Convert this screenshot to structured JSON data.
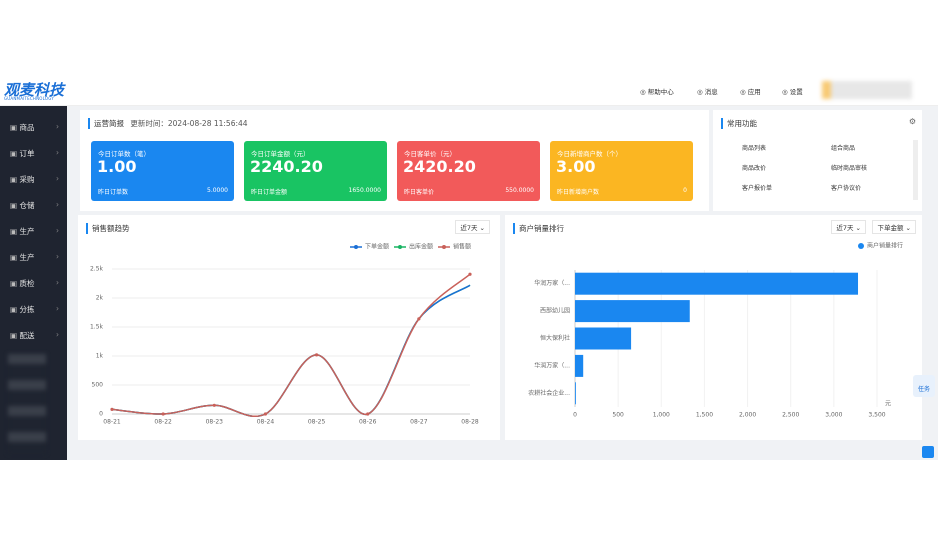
{
  "header": {
    "logo": "观麦科技",
    "logo_sub": "GUANMAITECHNOLOGY",
    "links": [
      "帮助中心",
      "消息",
      "应用",
      "设置"
    ]
  },
  "sidebar": {
    "items": [
      "商品",
      "订单",
      "采购",
      "仓储",
      "生产",
      "生产",
      "质检",
      "分拣",
      "配送"
    ]
  },
  "overview": {
    "title": "运营简报",
    "updated": "更新时间：2024-08-28 11:56:44",
    "cards": [
      {
        "label": "今日订单数（笔）",
        "value": "1.00",
        "sub_label": "昨日订单数",
        "sub_value": "5.0000",
        "color": "#1a87f0"
      },
      {
        "label": "今日订单金额（元）",
        "value": "2240.20",
        "sub_label": "昨日订单金额",
        "sub_value": "1650.0000",
        "color": "#19c463"
      },
      {
        "label": "今日客单价（元）",
        "value": "2420.20",
        "sub_label": "昨日客单价",
        "sub_value": "550.0000",
        "color": "#f25a5a"
      },
      {
        "label": "今日新增商户数（个）",
        "value": "3.00",
        "sub_label": "昨日新增商户数",
        "sub_value": "0",
        "color": "#fbb622"
      }
    ]
  },
  "shortcuts": {
    "title": "常用功能",
    "items": [
      "商品列表",
      "组合商品",
      "商品改价",
      "临时商品审核",
      "客户报价单",
      "客户协议价"
    ]
  },
  "sales_trend": {
    "title": "销售额趋势",
    "range": "近7天",
    "categories": [
      "08-21",
      "08-22",
      "08-23",
      "08-24",
      "08-25",
      "08-26",
      "08-27",
      "08-28"
    ],
    "series": [
      {
        "name": "下单金额",
        "color": "#1a6fd6",
        "values": [
          80,
          0,
          150,
          0,
          1020,
          0,
          1640,
          2220
        ]
      },
      {
        "name": "出库金额",
        "color": "#19b463",
        "values": [
          80,
          0,
          150,
          0,
          1020,
          0,
          1640,
          2220
        ]
      },
      {
        "name": "销售额",
        "color": "#c9615a",
        "values": [
          80,
          0,
          150,
          0,
          1020,
          0,
          1640,
          2410
        ]
      }
    ],
    "ylim": [
      0,
      2500
    ],
    "yticks": [
      0,
      500,
      {
        "value": 1000,
        "label": "1k"
      },
      {
        "value": 1500,
        "label": "1.5k"
      },
      {
        "value": 2000,
        "label": "2k"
      },
      {
        "value": 2500,
        "label": "2.5k"
      }
    ]
  },
  "merchant_rank": {
    "title": "商户销量排行",
    "range": "近7天",
    "metric": "下单金额",
    "legend": "商户销量排行",
    "unit": "元",
    "color": "#1a87f0",
    "categories": [
      "华润万家（...",
      "西部幼儿园",
      "恒大保利社",
      "华润万家（...",
      "农耕社会企业..."
    ],
    "values": [
      3280,
      1330,
      650,
      95,
      10
    ],
    "xlim": [
      0,
      3500
    ],
    "xticks": [
      0,
      500,
      {
        "value": 1000,
        "label": "1,000"
      },
      {
        "value": 1500,
        "label": "1,500"
      },
      {
        "value": 2000,
        "label": "2,000"
      },
      {
        "value": 2500,
        "label": "2,500"
      },
      {
        "value": 3000,
        "label": "3,000"
      },
      {
        "value": 3500,
        "label": "3,500"
      }
    ]
  },
  "task_button": "任务"
}
